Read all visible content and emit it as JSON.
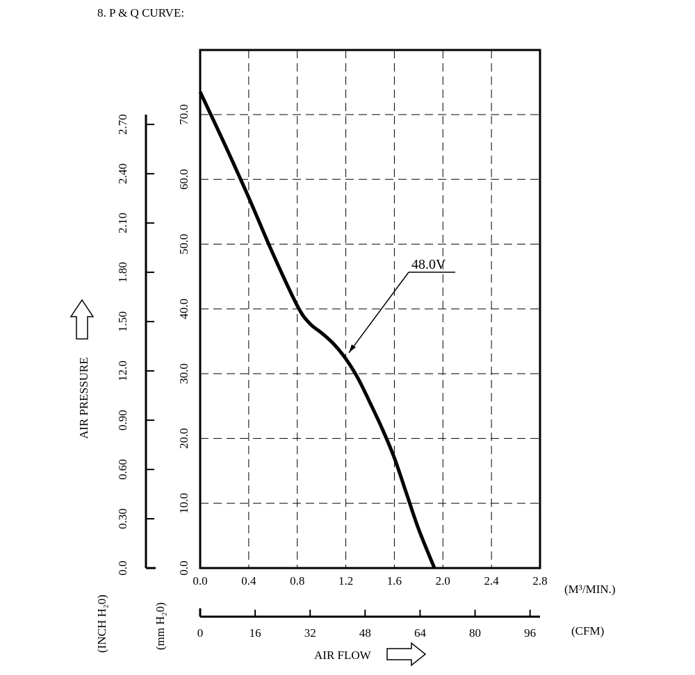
{
  "page": {
    "heading": "8. P & Q CURVE:"
  },
  "chart_data": {
    "type": "line",
    "title": "",
    "xlabel": "AIR FLOW",
    "x_unit_primary": "(M³/MIN.)",
    "x_unit_secondary": "(CFM)",
    "ylabel": "AIR PRESSURE",
    "y_unit_primary": "(mm H₂0)",
    "y_unit_secondary": "(INCH H₂0)",
    "xlim": [
      0,
      2.8
    ],
    "ylim": [
      0,
      70
    ],
    "grid": true,
    "x_ticks": [
      "0.0",
      "0.4",
      "0.8",
      "1.2",
      "1.6",
      "2.0",
      "2.4",
      "2.8"
    ],
    "y_ticks": [
      "0.0",
      "10.0",
      "20.0",
      "30.0",
      "40.0",
      "50.0",
      "60.0",
      "70.0"
    ],
    "cfm_ticks": [
      "0",
      "16",
      "32",
      "48",
      "64",
      "80",
      "96"
    ],
    "cfm_lim": [
      0,
      98.9
    ],
    "inch_ticks": [
      "0.0",
      "0.30",
      "0.60",
      "0.90",
      "12.0",
      "1.50",
      "1.80",
      "2.10",
      "2.40",
      "2.70"
    ],
    "inch_lim": [
      0,
      2.76
    ],
    "series": [
      {
        "name": "48.0V",
        "x": [
          0.0,
          0.2,
          0.4,
          0.6,
          0.8,
          0.9,
          1.0,
          1.1,
          1.2,
          1.3,
          1.4,
          1.5,
          1.6,
          1.7,
          1.8,
          1.93
        ],
        "y": [
          73.5,
          65.5,
          57.2,
          48.5,
          40.5,
          37.8,
          36.3,
          34.6,
          32.3,
          29.3,
          25.5,
          21.5,
          17.0,
          11.5,
          6.0,
          0.0
        ]
      }
    ]
  }
}
